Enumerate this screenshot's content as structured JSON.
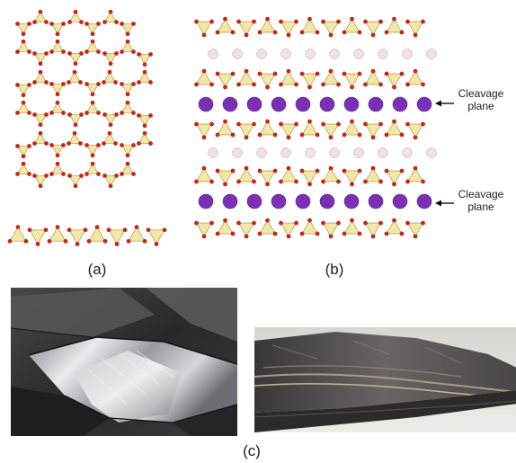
{
  "captions": {
    "a": "(a)",
    "b": "(b)",
    "c": "(c)"
  },
  "annotations": [
    {
      "line1": "Cleavage",
      "line2": "plane"
    },
    {
      "line1": "Cleavage",
      "line2": "plane"
    }
  ],
  "colors": {
    "tetrahedron": "#f2e7a6",
    "tetra_edge": "#b9a862",
    "oxygen": "#c0281a",
    "potassium": "#7b2fb6",
    "hydroxyl": "#f3dfe6",
    "mica_dark": "#2c2a2c",
    "mica_silver": "#d8d8dc"
  },
  "icons": {
    "arrow": "left-arrow-icon"
  }
}
